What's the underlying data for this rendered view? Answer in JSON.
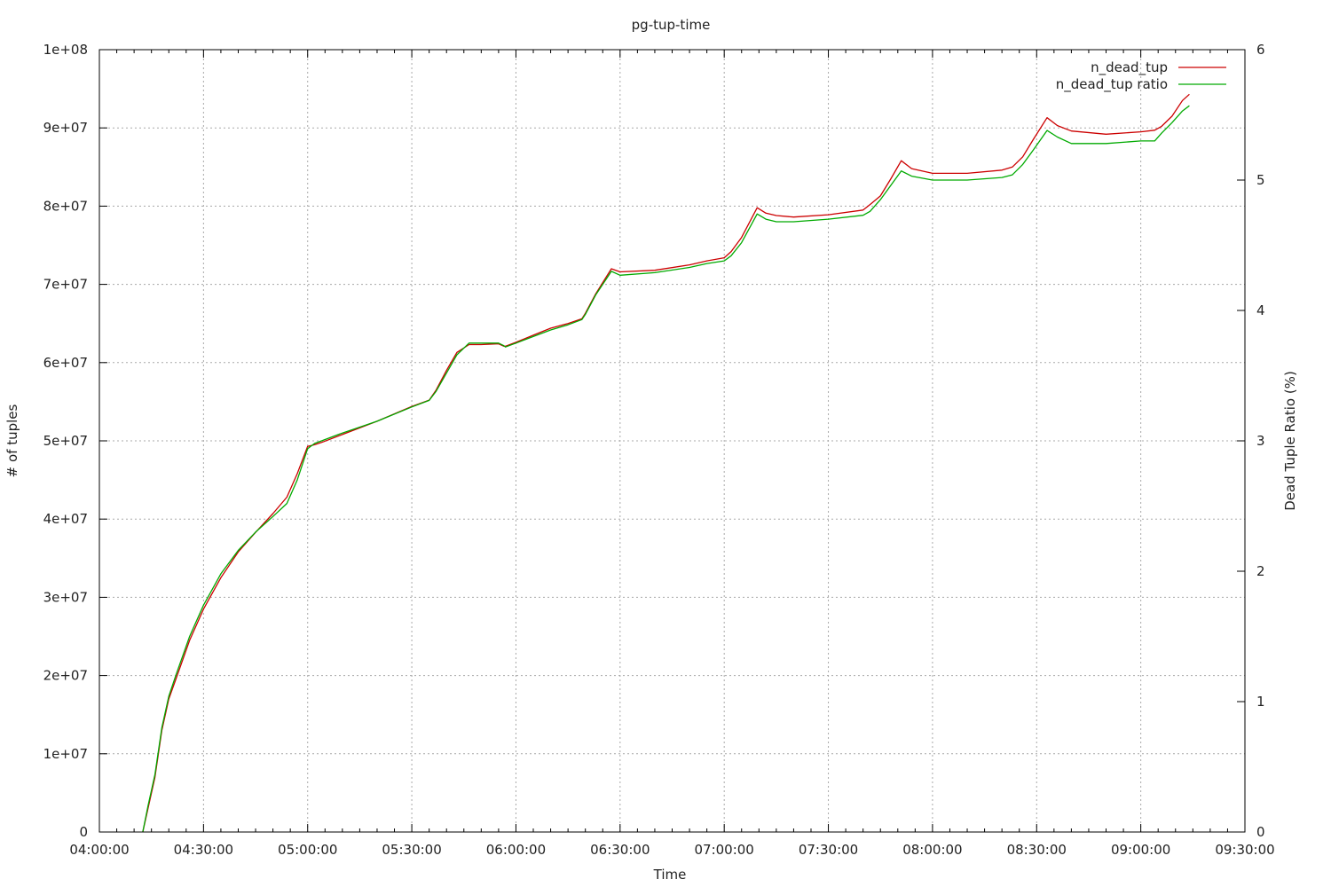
{
  "chart_data": {
    "type": "line",
    "title": "pg-tup-time",
    "xlabel": "Time",
    "ylabel": "# of tuples",
    "y2label": "Dead Tuple Ratio (%)",
    "xlim": [
      "04:00:00",
      "09:30:00"
    ],
    "ylim": [
      0,
      100000000
    ],
    "y2lim": [
      0,
      6
    ],
    "x_ticks": [
      "04:00:00",
      "04:30:00",
      "05:00:00",
      "05:30:00",
      "06:00:00",
      "06:30:00",
      "07:00:00",
      "07:30:00",
      "08:00:00",
      "08:30:00",
      "09:00:00",
      "09:30:00"
    ],
    "y_ticks": [
      "0",
      "1e+07",
      "2e+07",
      "3e+07",
      "4e+07",
      "5e+07",
      "6e+07",
      "7e+07",
      "8e+07",
      "9e+07",
      "1e+08"
    ],
    "y2_ticks": [
      "0",
      "1",
      "2",
      "3",
      "4",
      "5",
      "6"
    ],
    "grid": true,
    "legend_position": "top-right",
    "series": [
      {
        "name": "n_dead_tup",
        "color": "#cc0000",
        "axis": "y",
        "x": [
          "04:12:30",
          "04:14:00",
          "04:16:00",
          "04:18:00",
          "04:20:00",
          "04:22:00",
          "04:26:00",
          "04:30:00",
          "04:35:00",
          "04:40:00",
          "04:45:00",
          "04:50:00",
          "04:54:00",
          "04:57:00",
          "05:00:00",
          "05:02:00",
          "05:04:00",
          "05:10:00",
          "05:20:00",
          "05:30:00",
          "05:35:00",
          "05:37:00",
          "05:40:00",
          "05:43:00",
          "05:46:30",
          "05:50:00",
          "05:55:00",
          "05:56:30",
          "05:57:00",
          "06:00:00",
          "06:05:00",
          "06:10:00",
          "06:15:00",
          "06:19:00",
          "06:20:00",
          "06:23:00",
          "06:27:30",
          "06:30:00",
          "06:40:00",
          "06:50:00",
          "06:55:00",
          "07:00:00",
          "07:02:00",
          "07:05:00",
          "07:09:30",
          "07:12:00",
          "07:15:00",
          "07:20:00",
          "07:30:00",
          "07:40:00",
          "07:42:00",
          "07:45:00",
          "07:48:00",
          "07:51:00",
          "07:54:00",
          "08:00:00",
          "08:10:00",
          "08:20:00",
          "08:23:00",
          "08:26:00",
          "08:29:00",
          "08:33:00",
          "08:36:00",
          "08:40:00",
          "08:50:00",
          "09:00:00",
          "09:04:00",
          "09:06:00",
          "09:09:00",
          "09:12:00",
          "09:14:00"
        ],
        "y": [
          0,
          3000000,
          7000000,
          13000000,
          17000000,
          19500000,
          24500000,
          28500000,
          32500000,
          35800000,
          38300000,
          40700000,
          42800000,
          45800000,
          49300000,
          49500000,
          49800000,
          50800000,
          52500000,
          54400000,
          55200000,
          56500000,
          59000000,
          61300000,
          62300000,
          62300000,
          62400000,
          62100000,
          62100000,
          62600000,
          63500000,
          64400000,
          65000000,
          65600000,
          66300000,
          68800000,
          72000000,
          71600000,
          71800000,
          72500000,
          73000000,
          73400000,
          74200000,
          76000000,
          79800000,
          79100000,
          78800000,
          78600000,
          78900000,
          79500000,
          80200000,
          81300000,
          83500000,
          85800000,
          84800000,
          84200000,
          84200000,
          84600000,
          85000000,
          86300000,
          88500000,
          91300000,
          90300000,
          89600000,
          89200000,
          89500000,
          89700000,
          90200000,
          91500000,
          93500000,
          94300000
        ]
      },
      {
        "name": "n_dead_tup ratio",
        "color": "#00aa00",
        "axis": "y2",
        "x": [
          "04:12:30",
          "04:14:00",
          "04:16:00",
          "04:18:00",
          "04:20:00",
          "04:22:00",
          "04:26:00",
          "04:30:00",
          "04:35:00",
          "04:40:00",
          "04:45:00",
          "04:50:00",
          "04:54:00",
          "04:57:00",
          "05:00:00",
          "05:02:00",
          "05:04:00",
          "05:10:00",
          "05:20:00",
          "05:30:00",
          "05:35:00",
          "05:37:00",
          "05:40:00",
          "05:43:00",
          "05:46:30",
          "05:50:00",
          "05:55:00",
          "05:56:30",
          "05:57:00",
          "06:00:00",
          "06:05:00",
          "06:10:00",
          "06:15:00",
          "06:19:00",
          "06:20:00",
          "06:23:00",
          "06:27:30",
          "06:30:00",
          "06:40:00",
          "06:50:00",
          "06:55:00",
          "07:00:00",
          "07:02:00",
          "07:05:00",
          "07:09:30",
          "07:12:00",
          "07:15:00",
          "07:20:00",
          "07:30:00",
          "07:40:00",
          "07:42:00",
          "07:45:00",
          "07:48:00",
          "07:51:00",
          "07:54:00",
          "08:00:00",
          "08:10:00",
          "08:20:00",
          "08:23:00",
          "08:26:00",
          "08:29:00",
          "08:33:00",
          "08:36:00",
          "08:40:00",
          "08:50:00",
          "09:00:00",
          "09:04:00",
          "09:06:00",
          "09:09:00",
          "09:12:00",
          "09:14:00"
        ],
        "y": [
          0,
          0.2,
          0.44,
          0.8,
          1.04,
          1.2,
          1.5,
          1.74,
          1.98,
          2.16,
          2.3,
          2.42,
          2.52,
          2.7,
          2.94,
          2.98,
          3.0,
          3.06,
          3.15,
          3.26,
          3.31,
          3.38,
          3.52,
          3.66,
          3.75,
          3.75,
          3.75,
          3.73,
          3.72,
          3.75,
          3.8,
          3.85,
          3.89,
          3.93,
          3.97,
          4.12,
          4.3,
          4.27,
          4.29,
          4.33,
          4.36,
          4.38,
          4.42,
          4.52,
          4.74,
          4.7,
          4.68,
          4.68,
          4.7,
          4.73,
          4.76,
          4.85,
          4.96,
          5.07,
          5.03,
          5.0,
          5.0,
          5.02,
          5.04,
          5.12,
          5.23,
          5.38,
          5.33,
          5.28,
          5.28,
          5.3,
          5.3,
          5.36,
          5.44,
          5.53,
          5.57
        ]
      }
    ]
  }
}
